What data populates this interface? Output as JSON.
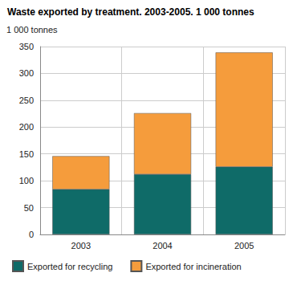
{
  "chart_data": {
    "type": "bar",
    "title": "Waste exported by treatment. 2003-2005. 1 000 tonnes",
    "y_label": "1 000 tonnes",
    "categories": [
      "2003",
      "2004",
      "2005"
    ],
    "series": [
      {
        "name": "Exported for recycling",
        "color": "#0f6b68",
        "values": [
          84,
          112,
          126
        ]
      },
      {
        "name": "Exported for incineration",
        "color": "#f59c3c",
        "values": [
          62,
          114,
          213
        ]
      }
    ],
    "stacked": true,
    "ylim": [
      0,
      350
    ],
    "yticks": [
      0,
      50,
      100,
      150,
      200,
      250,
      300,
      350
    ],
    "grid": true,
    "legend": "bottom"
  }
}
